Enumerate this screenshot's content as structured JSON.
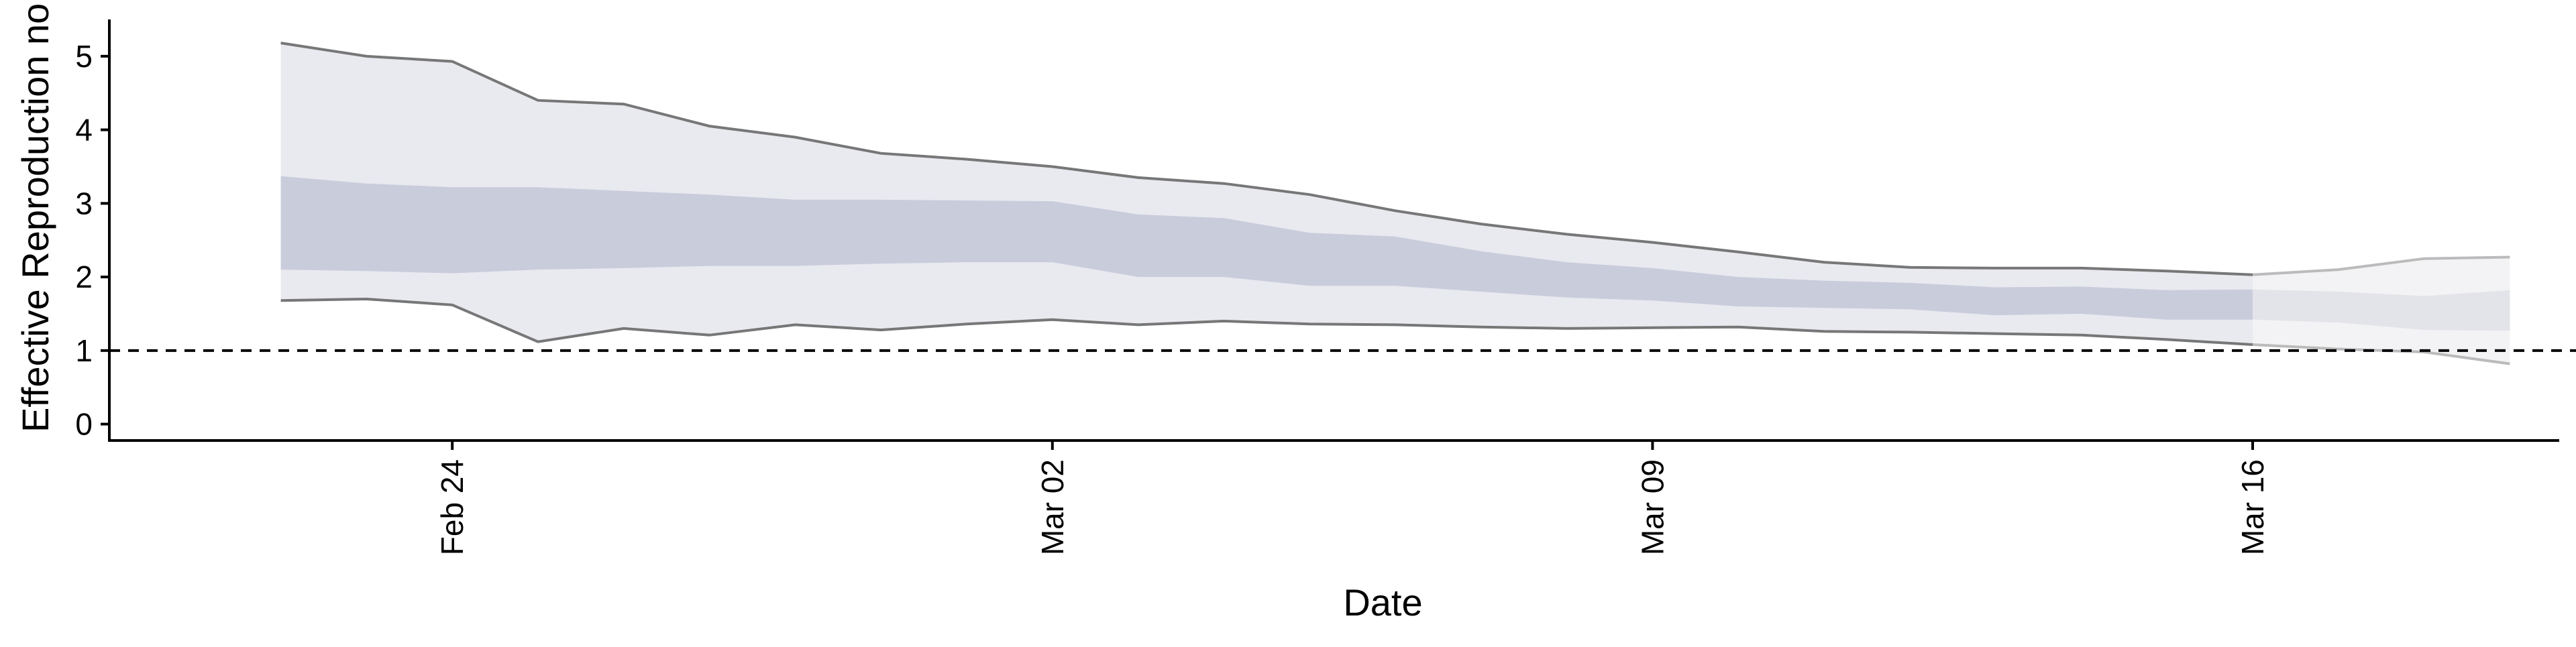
{
  "chart_data": {
    "type": "area",
    "title": "",
    "xlabel": "Date",
    "ylabel": "Effective Reproduction no.",
    "ylim": [
      -0.25,
      5.5
    ],
    "yticks": [
      0,
      1,
      2,
      3,
      4,
      5
    ],
    "xticks": [
      {
        "date": "2020-02-24",
        "label": "Feb 24"
      },
      {
        "date": "2020-03-02",
        "label": "Mar 02"
      },
      {
        "date": "2020-03-09",
        "label": "Mar 09"
      },
      {
        "date": "2020-03-16",
        "label": "Mar 16"
      }
    ],
    "xlim": [
      "2020-02-20",
      "2020-03-20"
    ],
    "grid": false,
    "legend": "none",
    "reference_line": {
      "y": 1,
      "style": "dashed"
    },
    "x": [
      "2020-02-22",
      "2020-02-23",
      "2020-02-24",
      "2020-02-25",
      "2020-02-26",
      "2020-02-27",
      "2020-02-28",
      "2020-02-29",
      "2020-03-01",
      "2020-03-02",
      "2020-03-03",
      "2020-03-04",
      "2020-03-05",
      "2020-03-06",
      "2020-03-07",
      "2020-03-08",
      "2020-03-09",
      "2020-03-10",
      "2020-03-11",
      "2020-03-12",
      "2020-03-13",
      "2020-03-14",
      "2020-03-15",
      "2020-03-16",
      "2020-03-17",
      "2020-03-18",
      "2020-03-19"
    ],
    "series": [
      {
        "role": "upper_90",
        "values": [
          5.18,
          5.0,
          4.93,
          4.4,
          4.35,
          4.05,
          3.9,
          3.68,
          3.6,
          3.5,
          3.35,
          3.27,
          3.12,
          2.9,
          2.72,
          2.58,
          2.47,
          2.34,
          2.2,
          2.13,
          2.12,
          2.12,
          2.08,
          2.03,
          2.1,
          2.25,
          2.27
        ]
      },
      {
        "role": "upper_50",
        "values": [
          3.37,
          3.27,
          3.22,
          3.22,
          3.17,
          3.12,
          3.05,
          3.05,
          3.04,
          3.03,
          2.85,
          2.8,
          2.6,
          2.55,
          2.35,
          2.2,
          2.12,
          2.0,
          1.95,
          1.92,
          1.86,
          1.87,
          1.82,
          1.83,
          1.8,
          1.74,
          1.82
        ]
      },
      {
        "role": "lower_50",
        "values": [
          2.1,
          2.08,
          2.05,
          2.1,
          2.12,
          2.15,
          2.15,
          2.18,
          2.2,
          2.2,
          2.0,
          2.0,
          1.88,
          1.88,
          1.8,
          1.72,
          1.68,
          1.6,
          1.58,
          1.56,
          1.48,
          1.5,
          1.42,
          1.42,
          1.38,
          1.28,
          1.27
        ]
      },
      {
        "role": "lower_90",
        "values": [
          1.68,
          1.7,
          1.62,
          1.12,
          1.3,
          1.21,
          1.35,
          1.28,
          1.36,
          1.42,
          1.35,
          1.4,
          1.36,
          1.35,
          1.32,
          1.3,
          1.31,
          1.32,
          1.26,
          1.25,
          1.23,
          1.21,
          1.15,
          1.08,
          1.02,
          0.98,
          0.82
        ]
      }
    ],
    "colors": {
      "band_90": "#e9eaf0",
      "band_50": "#c9ccdb",
      "band_90_recent": "#f3f3f5",
      "band_50_recent": "#e3e4e9",
      "bound_line": "#777777",
      "bound_line_recent": "#bbbbbb",
      "axis": "#000000",
      "reference_line": "#000000"
    },
    "recent_from": "2020-03-16"
  }
}
